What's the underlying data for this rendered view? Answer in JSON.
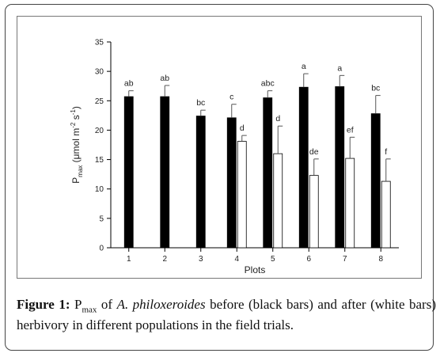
{
  "chart_data": {
    "type": "bar",
    "categories": [
      "1",
      "2",
      "3",
      "4",
      "5",
      "6",
      "7",
      "8"
    ],
    "series": [
      {
        "name": "black bars",
        "color": "#000000",
        "values": [
          25.7,
          25.7,
          22.4,
          22.1,
          25.5,
          27.3,
          27.4,
          22.8
        ],
        "errors": [
          1.0,
          1.9,
          1.0,
          2.3,
          1.2,
          2.3,
          1.9,
          3.1
        ],
        "labels": [
          "ab",
          "ab",
          "bc",
          "c",
          "abc",
          "a",
          "a",
          "bc"
        ]
      },
      {
        "name": "white bars",
        "color": "#ffffff",
        "values": [
          null,
          null,
          null,
          18.1,
          16.0,
          12.3,
          15.2,
          11.3
        ],
        "errors": [
          null,
          null,
          null,
          1.0,
          4.7,
          2.8,
          3.6,
          3.8
        ],
        "labels": [
          "",
          "",
          "",
          "d",
          "d",
          "de",
          "ef",
          "f"
        ]
      }
    ],
    "xlabel": "Plots",
    "ylabel_main": "P",
    "ylabel_sub": "max",
    "ylabel_unit": " (μmol m",
    "ylabel_sup1": "-2",
    "ylabel_mid": " s",
    "ylabel_sup2": "-1",
    "ylabel_end": ")",
    "ylim": [
      0,
      35
    ],
    "yticks": [
      0,
      5,
      10,
      15,
      20,
      25,
      30,
      35
    ],
    "grid": false,
    "legend": "none"
  },
  "caption": {
    "lead": "Figure 1:",
    "p": "P",
    "p_sub": "max",
    "of": " of ",
    "species": "A. philoxeroides",
    "rest": " before (black bars) and after (white bars) herbivory in different populations in the field trials."
  }
}
